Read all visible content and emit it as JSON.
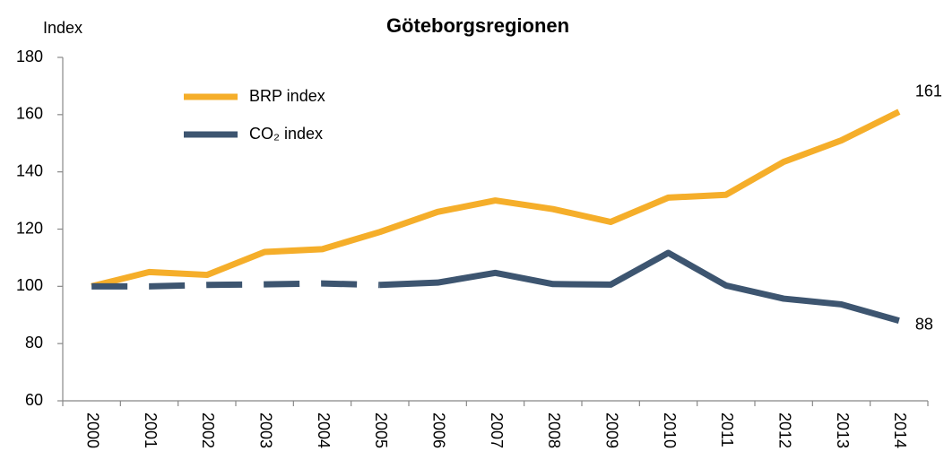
{
  "chart_data": {
    "type": "line",
    "title": "Göteborgsregionen",
    "y_label": "Index",
    "categories": [
      "2000",
      "2001",
      "2002",
      "2003",
      "2004",
      "2005",
      "2006",
      "2007",
      "2008",
      "2009",
      "2010",
      "2011",
      "2012",
      "2013",
      "2014"
    ],
    "series": [
      {
        "name": "BRP index",
        "color": "#f5ae2a",
        "values": [
          100,
          105,
          104,
          112,
          113,
          119,
          126,
          130,
          127,
          122.5,
          131,
          132,
          143.5,
          151,
          161
        ]
      },
      {
        "name": "CO₂ index",
        "color": "#3d5570",
        "dashed_through": "2005",
        "values": [
          100,
          100,
          100.5,
          100.7,
          101,
          100.5,
          101.3,
          104.7,
          100.8,
          100.6,
          111.7,
          100.3,
          95.7,
          93.7,
          88
        ]
      }
    ],
    "ylim": [
      60,
      180
    ],
    "yticks": [
      60,
      80,
      100,
      120,
      140,
      160,
      180
    ]
  }
}
